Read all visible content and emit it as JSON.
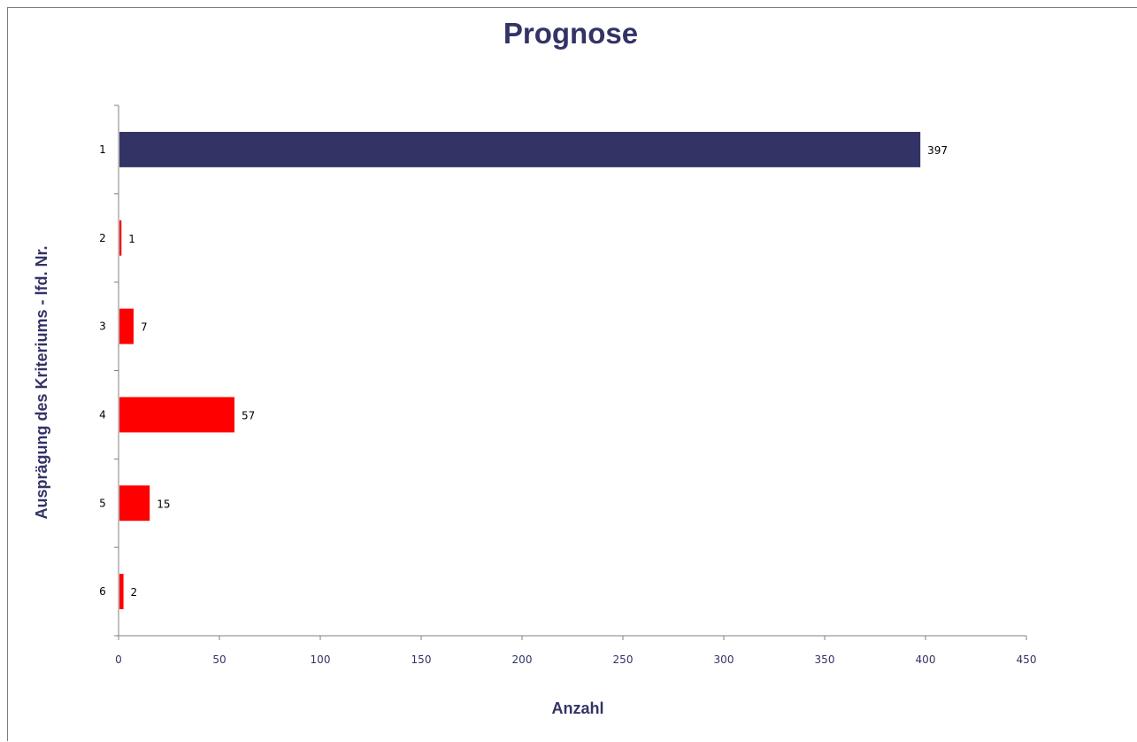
{
  "chart_data": {
    "type": "bar",
    "orientation": "horizontal",
    "title": "Prognose",
    "xlabel": "Anzahl",
    "ylabel": "Ausprägung des Kriteriums - lfd. Nr.",
    "categories": [
      "1",
      "2",
      "3",
      "4",
      "5",
      "6"
    ],
    "values": [
      397,
      1,
      7,
      57,
      15,
      2
    ],
    "data_labels": [
      "397",
      "1",
      "7",
      "57",
      "15",
      "2"
    ],
    "bar_colors": [
      "#333366",
      "#ff0000",
      "#ff0000",
      "#ff0000",
      "#ff0000",
      "#ff0000"
    ],
    "xlim": [
      0,
      450
    ],
    "x_ticks": [
      "0",
      "50",
      "100",
      "150",
      "200",
      "250",
      "300",
      "350",
      "400",
      "450"
    ],
    "grid": false,
    "legend": "none"
  },
  "colors": {
    "title": "#333366",
    "axis": "#808080",
    "highlight_bar": "#333366",
    "bar": "#ff0000"
  }
}
